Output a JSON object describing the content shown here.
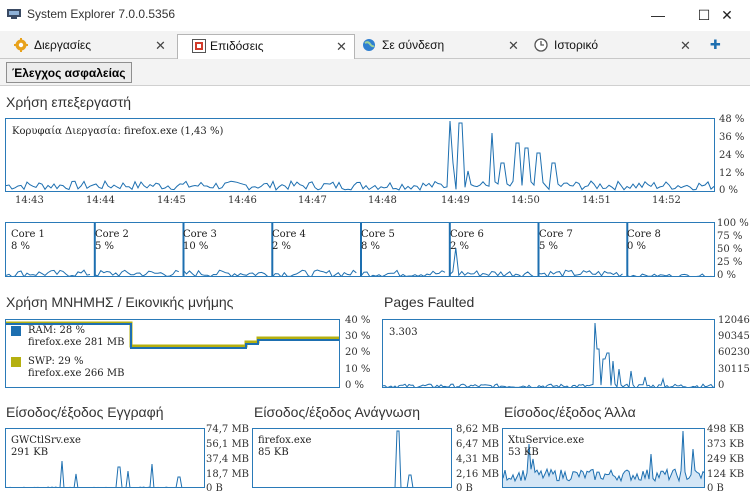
{
  "window": {
    "title": "System Explorer 7.0.0.5356",
    "minimize": "—",
    "maximize": "☐",
    "close": "✕"
  },
  "tabs": [
    {
      "label": "Διεργασίες",
      "icon": "gear-icon",
      "close": "✕"
    },
    {
      "label": "Επιδόσεις",
      "icon": "performance-icon",
      "close": "✕"
    },
    {
      "label": "Σε σύνδεση",
      "icon": "globe-icon",
      "close": "✕"
    },
    {
      "label": "Ιστορικό",
      "icon": "clock-icon",
      "close": "✕"
    }
  ],
  "add_tab": "✚",
  "toolbar": {
    "security_check": "Έλεγχος ασφαλείας"
  },
  "cpu": {
    "title": "Χρήση επεξεργαστή",
    "peak_label": "Κορυφαία Διεργασία: firefox.exe (1,43 %)",
    "y_ticks": [
      "48 %",
      "36 %",
      "24 %",
      "12 %",
      "0 %"
    ],
    "times": [
      "14:43",
      "14:44",
      "14:45",
      "14:46",
      "14:47",
      "14:48",
      "14:49",
      "14:50",
      "14:51",
      "14:52"
    ]
  },
  "cores": {
    "items": [
      {
        "name": "Core 1",
        "value": "8 %"
      },
      {
        "name": "Core 2",
        "value": "5 %"
      },
      {
        "name": "Core 3",
        "value": "10 %"
      },
      {
        "name": "Core 4",
        "value": "2 %"
      },
      {
        "name": "Core 5",
        "value": "8 %"
      },
      {
        "name": "Core 6",
        "value": "2 %"
      },
      {
        "name": "Core 7",
        "value": "5 %"
      },
      {
        "name": "Core 8",
        "value": "0 %"
      }
    ],
    "y_ticks": [
      "100 %",
      "75 %",
      "50 %",
      "25 %",
      "0 %"
    ]
  },
  "memory": {
    "title": "Χρήση ΜΝΗΜΗΣ / Εικονικής μνήμης",
    "ram_label": "RAM: 28 %",
    "ram_proc": "firefox.exe 281 MB",
    "swp_label": "SWP: 29 %",
    "swp_proc": "firefox.exe 266 MB",
    "y_ticks": [
      "40 %",
      "30 %",
      "20 %",
      "10 %",
      "0 %"
    ],
    "colors": {
      "ram": "#1d6fb0",
      "swp": "#b5b010"
    }
  },
  "pages": {
    "title": "Pages Faulted",
    "value": "3.303",
    "y_ticks": [
      "120460",
      "90345",
      "60230",
      "30115",
      "0"
    ]
  },
  "io_write": {
    "title": "Είσοδος/έξοδος Εγγραφή",
    "proc": "GWCtlSrv.exe",
    "value": "291 KB",
    "y_ticks": [
      "74,7 MB",
      "56,1 MB",
      "37,4 MB",
      "18,7 MB",
      "0 B"
    ]
  },
  "io_read": {
    "title": "Είσοδος/έξοδος Ανάγνωση",
    "proc": "firefox.exe",
    "value": "85 KB",
    "y_ticks": [
      "8,62 MB",
      "6,47 MB",
      "4,31 MB",
      "2,16 MB",
      "0 B"
    ]
  },
  "io_other": {
    "title": "Είσοδος/έξοδος Άλλα",
    "proc": "XtuService.exe",
    "value": "53 KB",
    "y_ticks": [
      "498 KB",
      "373 KB",
      "249 KB",
      "124 KB",
      "0 B"
    ]
  },
  "colors": {
    "line": "#1d6fb0",
    "border": "#2a7ab8"
  }
}
